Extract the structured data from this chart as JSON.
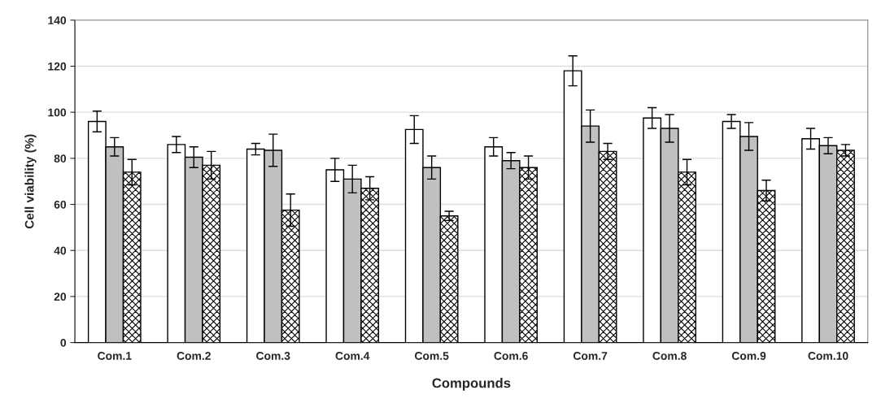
{
  "chart_data": {
    "type": "bar",
    "xlabel": "Compounds",
    "ylabel": "Cell viability (%)",
    "categories": [
      "Com.1",
      "Com.2",
      "Com.3",
      "Com.4",
      "Com.5",
      "Com.6",
      "Com.7",
      "Com.8",
      "Com.9",
      "Com.10"
    ],
    "series": [
      {
        "color": "#ffffff",
        "values": [
          96,
          86,
          84,
          75,
          92.5,
          85,
          118,
          97.5,
          96,
          88.5
        ],
        "errors": [
          4.5,
          3.5,
          2.5,
          5,
          6,
          4,
          6.5,
          4.5,
          3,
          4.5
        ]
      },
      {
        "color": "#c0c0c0",
        "values": [
          85,
          80.5,
          83.5,
          71,
          76,
          79,
          94,
          93,
          89.5,
          85.5
        ],
        "errors": [
          4,
          4.5,
          7,
          6,
          5,
          3.5,
          7,
          6,
          6,
          3.5
        ]
      },
      {
        "color": "#000000",
        "values": [
          74,
          77,
          57.5,
          67,
          55,
          76,
          83,
          74,
          66,
          83.5
        ],
        "errors": [
          5.5,
          6,
          7,
          5,
          2,
          5,
          3.5,
          5.5,
          4.5,
          2.5
        ]
      }
    ],
    "ylim": [
      0,
      140
    ],
    "yticks": [
      0,
      20,
      40,
      60,
      80,
      100,
      120,
      140
    ],
    "grid": "y"
  }
}
